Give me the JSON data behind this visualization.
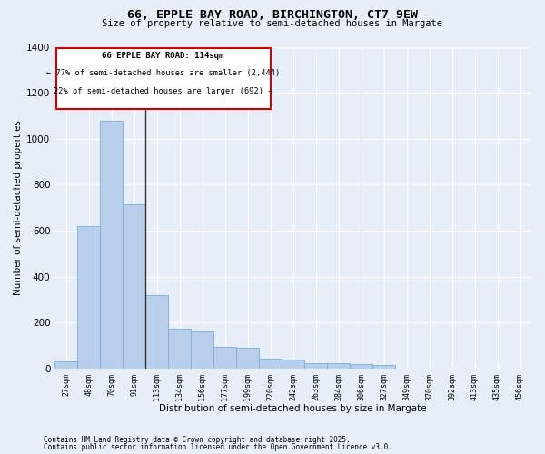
{
  "title_line1": "66, EPPLE BAY ROAD, BIRCHINGTON, CT7 9EW",
  "title_line2": "Size of property relative to semi-detached houses in Margate",
  "xlabel": "Distribution of semi-detached houses by size in Margate",
  "ylabel": "Number of semi-detached properties",
  "categories": [
    "27sqm",
    "48sqm",
    "70sqm",
    "91sqm",
    "113sqm",
    "134sqm",
    "156sqm",
    "177sqm",
    "199sqm",
    "220sqm",
    "242sqm",
    "263sqm",
    "284sqm",
    "306sqm",
    "327sqm",
    "349sqm",
    "370sqm",
    "392sqm",
    "413sqm",
    "435sqm",
    "456sqm"
  ],
  "values": [
    30,
    620,
    1080,
    715,
    320,
    175,
    160,
    95,
    90,
    45,
    40,
    25,
    22,
    18,
    15,
    0,
    0,
    0,
    0,
    0,
    0
  ],
  "bar_color": "#b8d0eb",
  "bar_edge_color": "#7aadd4",
  "background_color": "#e8eef8",
  "grid_color": "#ffffff",
  "vline_label": "66 EPPLE BAY ROAD: 114sqm",
  "annotation_smaller": "← 77% of semi-detached houses are smaller (2,444)",
  "annotation_larger": "22% of semi-detached houses are larger (692) →",
  "box_color": "#ffffff",
  "box_edge_color": "#cc0000",
  "ylim": [
    0,
    1400
  ],
  "yticks": [
    0,
    200,
    400,
    600,
    800,
    1000,
    1200,
    1400
  ],
  "footnote1": "Contains HM Land Registry data © Crown copyright and database right 2025.",
  "footnote2": "Contains public sector information licensed under the Open Government Licence v3.0."
}
